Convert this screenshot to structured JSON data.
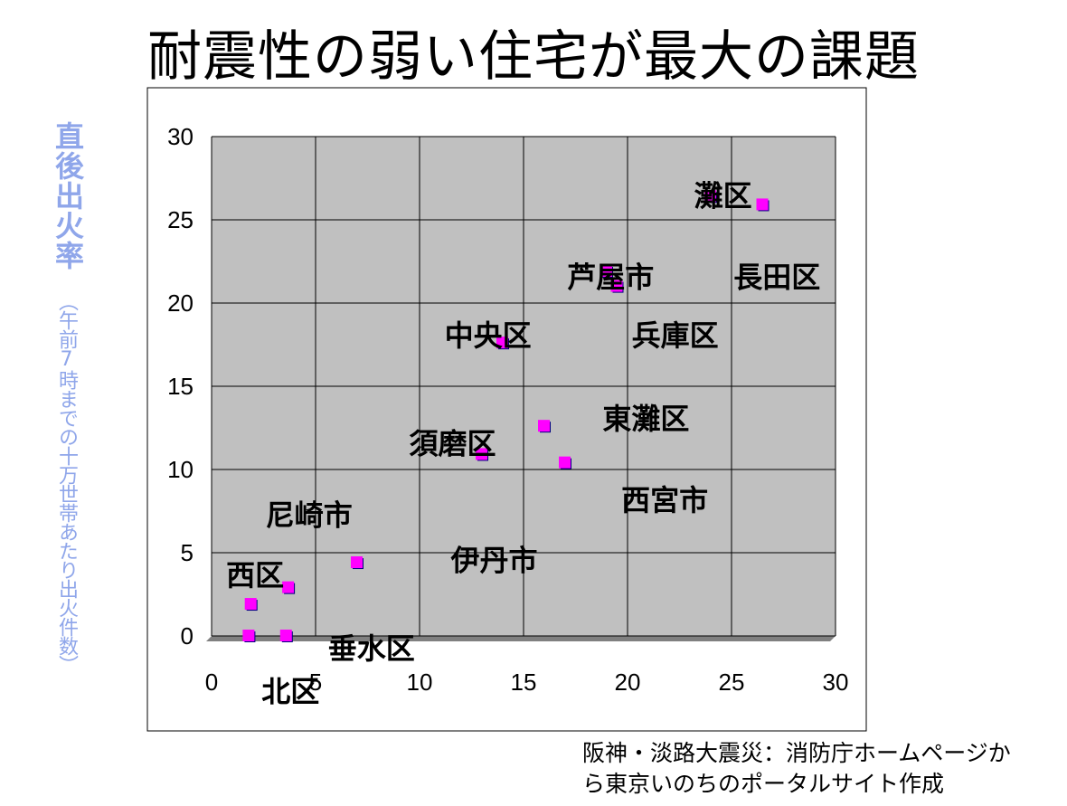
{
  "title": "耐震性の弱い住宅が最大の課題",
  "y_axis_label": {
    "main": "直後出火率",
    "sub": "（午前7時までの十万世帯あたり出火件数）"
  },
  "source": {
    "line1": "阪神・淡路大震災：消防庁ホームページか",
    "line2": "ら東京いのちのポータルサイト作成"
  },
  "colors": {
    "plot_bg": "#c0c0c0",
    "grid": "#000000",
    "point": "#ff00ff",
    "point_shadow": "#000080",
    "ylabel": "#8fa6ea"
  },
  "chart_data": {
    "type": "scatter",
    "title": "耐震性の弱い住宅が最大の課題",
    "xlabel": "",
    "ylabel": "直後出火率（午前7時までの十万世帯あたり出火件数）",
    "xlim": [
      0,
      30
    ],
    "ylim": [
      0,
      30
    ],
    "x_ticks": [
      0,
      5,
      10,
      15,
      20,
      25,
      30
    ],
    "y_ticks": [
      0,
      5,
      10,
      15,
      20,
      25,
      30
    ],
    "grid": true,
    "legend": "none",
    "points": [
      {
        "x": 24.0,
        "y": 26.4
      },
      {
        "x": 26.5,
        "y": 25.9
      },
      {
        "x": 19.0,
        "y": 21.9
      },
      {
        "x": 19.5,
        "y": 21.0
      },
      {
        "x": 14.0,
        "y": 17.6
      },
      {
        "x": 16.0,
        "y": 12.6
      },
      {
        "x": 13.0,
        "y": 10.9
      },
      {
        "x": 17.0,
        "y": 10.4
      },
      {
        "x": 7.0,
        "y": 4.4
      },
      {
        "x": 3.7,
        "y": 2.9
      },
      {
        "x": 1.9,
        "y": 1.9
      },
      {
        "x": 1.8,
        "y": 0.0
      },
      {
        "x": 3.6,
        "y": 0.0
      }
    ],
    "annotations": [
      {
        "text": "灘区",
        "x": 23.2,
        "y": 26.5
      },
      {
        "text": "長田区",
        "x": 25.1,
        "y": 21.6
      },
      {
        "text": "芦屋市",
        "x": 17.1,
        "y": 21.6
      },
      {
        "text": "兵庫区",
        "x": 20.2,
        "y": 18.1
      },
      {
        "text": "中央区",
        "x": 11.2,
        "y": 18.1
      },
      {
        "text": "東灘区",
        "x": 18.8,
        "y": 13.1
      },
      {
        "text": "須磨区",
        "x": 9.5,
        "y": 11.6
      },
      {
        "text": "西宮市",
        "x": 19.7,
        "y": 8.2
      },
      {
        "text": "尼崎市",
        "x": 2.6,
        "y": 7.3
      },
      {
        "text": "伊丹市",
        "x": 11.5,
        "y": 4.6
      },
      {
        "text": "西区",
        "x": 0.7,
        "y": 3.7
      },
      {
        "text": "垂水区",
        "x": 5.6,
        "y": -0.7
      },
      {
        "text": "北区",
        "x": 2.4,
        "y": -3.3
      }
    ]
  }
}
